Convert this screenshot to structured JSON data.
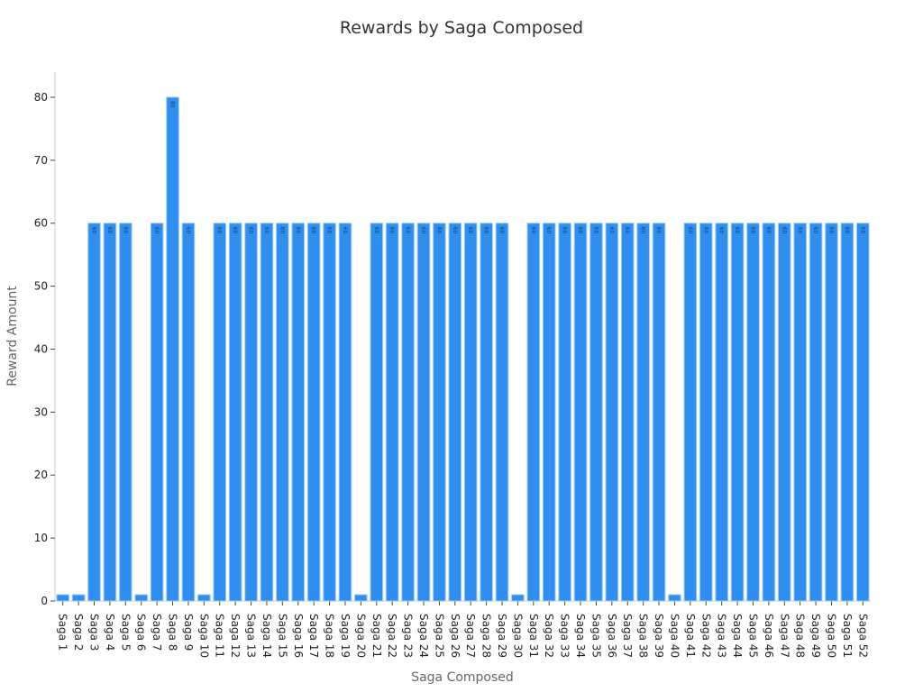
{
  "chart_data": {
    "type": "bar",
    "title": "Rewards by Saga Composed",
    "xlabel": "Saga Composed",
    "ylabel": "Reward Amount",
    "ylim": [
      0,
      84
    ],
    "yticks": [
      0,
      10,
      20,
      30,
      40,
      50,
      60,
      70,
      80
    ],
    "grid": false,
    "bar_color": "#2f8ff0",
    "categories": [
      "Saga 1",
      "Saga 2",
      "Saga 3",
      "Saga 4",
      "Saga 5",
      "Saga 6",
      "Saga 7",
      "Saga 8",
      "Saga 9",
      "Saga 10",
      "Saga 11",
      "Saga 12",
      "Saga 13",
      "Saga 14",
      "Saga 15",
      "Saga 16",
      "Saga 17",
      "Saga 18",
      "Saga 19",
      "Saga 20",
      "Saga 21",
      "Saga 22",
      "Saga 23",
      "Saga 24",
      "Saga 25",
      "Saga 26",
      "Saga 27",
      "Saga 28",
      "Saga 29",
      "Saga 30",
      "Saga 31",
      "Saga 32",
      "Saga 33",
      "Saga 34",
      "Saga 35",
      "Saga 36",
      "Saga 37",
      "Saga 38",
      "Saga 39",
      "Saga 40",
      "Saga 41",
      "Saga 42",
      "Saga 43",
      "Saga 44",
      "Saga 45",
      "Saga 46",
      "Saga 47",
      "Saga 48",
      "Saga 49",
      "Saga 50",
      "Saga 51",
      "Saga 52"
    ],
    "values": [
      1,
      1,
      60,
      60,
      60,
      1,
      60,
      80,
      60,
      1,
      60,
      60,
      60,
      60,
      60,
      60,
      60,
      60,
      60,
      1,
      60,
      60,
      60,
      60,
      60,
      60,
      60,
      60,
      60,
      1,
      60,
      60,
      60,
      60,
      60,
      60,
      60,
      60,
      60,
      1,
      60,
      60,
      60,
      60,
      60,
      60,
      60,
      60,
      60,
      60,
      60,
      60
    ],
    "data_labels": [
      "",
      "",
      "60",
      "60",
      "60",
      "",
      "60",
      "80",
      "60",
      "",
      "60",
      "60",
      "60",
      "60",
      "60",
      "60",
      "60",
      "60",
      "60",
      "",
      "60",
      "60",
      "60",
      "60",
      "60",
      "60",
      "60",
      "60",
      "60",
      "",
      "60",
      "60",
      "60",
      "60",
      "60",
      "60",
      "60",
      "60",
      "60",
      "",
      "60",
      "60",
      "60",
      "60",
      "60",
      "60",
      "60",
      "60",
      "60",
      "60",
      "60",
      "60"
    ]
  }
}
